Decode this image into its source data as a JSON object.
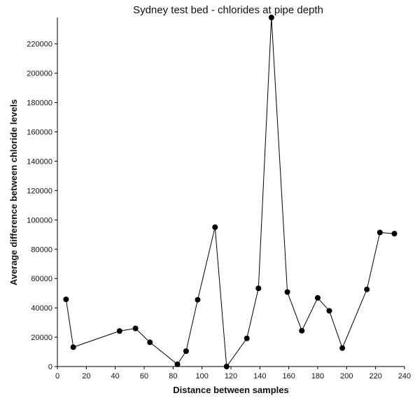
{
  "chart_data": {
    "type": "scatter",
    "title": "Sydney test bed - chlorides at pipe depth",
    "xlabel": "Distance between samples",
    "ylabel": "Average difference between chloride levels",
    "xlim": [
      0,
      240
    ],
    "ylim": [
      0,
      238000
    ],
    "xticks": [
      0,
      20,
      40,
      60,
      80,
      100,
      120,
      140,
      160,
      180,
      200,
      220,
      240
    ],
    "yticks": [
      0,
      20000,
      40000,
      60000,
      80000,
      100000,
      120000,
      140000,
      160000,
      180000,
      200000,
      220000
    ],
    "grid": false,
    "connected": true,
    "series": [
      {
        "x": [
          6,
          11,
          43,
          54,
          64,
          83,
          89,
          97,
          109,
          117,
          131,
          139,
          148,
          159,
          169,
          180,
          188,
          197,
          214,
          223,
          233
        ],
        "y": [
          45800,
          13200,
          24200,
          26000,
          16500,
          1500,
          10500,
          45500,
          95000,
          0,
          19200,
          53300,
          238000,
          50800,
          24400,
          46800,
          38000,
          12600,
          52600,
          91400,
          90600
        ]
      }
    ]
  }
}
